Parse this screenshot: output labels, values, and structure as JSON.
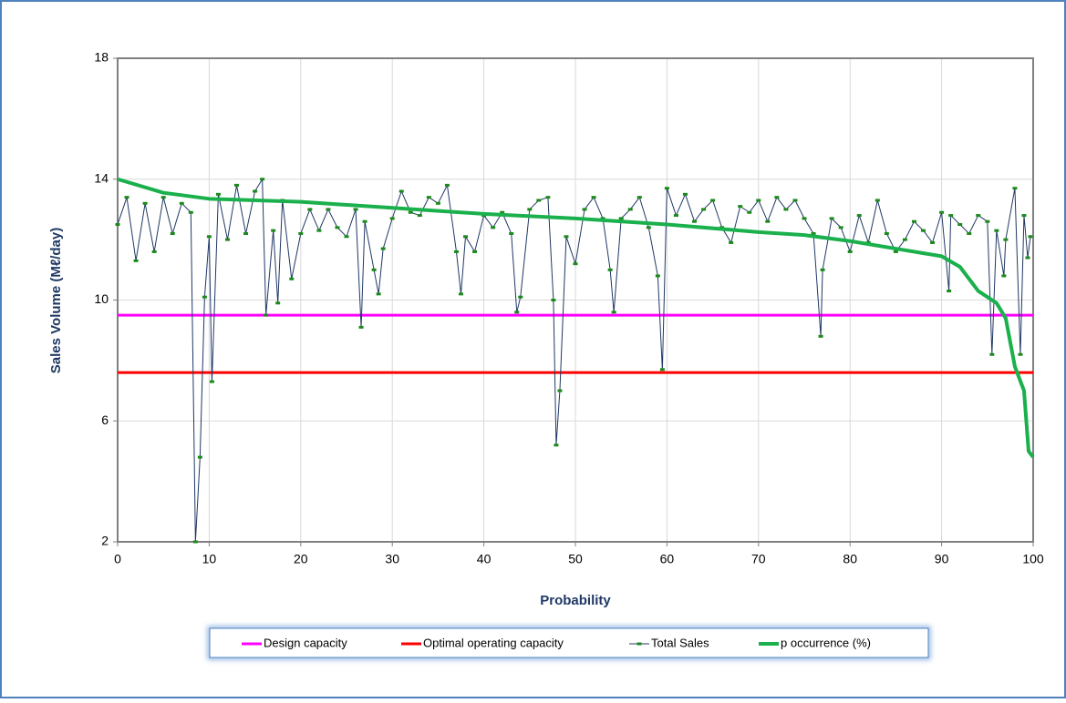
{
  "chart_data": {
    "type": "line",
    "xlabel": "Probability",
    "ylabel": "Sales Volume (Mℓ/day)",
    "xlim": [
      0,
      100
    ],
    "xticks": [
      0,
      10,
      20,
      30,
      40,
      50,
      60,
      70,
      80,
      90,
      100
    ],
    "ylim": [
      2,
      18
    ],
    "yticks": [
      2,
      6,
      10,
      14,
      18
    ],
    "grid": true,
    "legend": "bottom",
    "series": [
      {
        "name": "Design capacity",
        "color": "#ff00ff",
        "x": [
          0,
          100
        ],
        "values": [
          9.5,
          9.5
        ]
      },
      {
        "name": "Optimal operating capacity",
        "color": "#ff0000",
        "x": [
          0,
          100
        ],
        "values": [
          7.6,
          7.6
        ]
      },
      {
        "name": "Total Sales",
        "color": "#1f3864",
        "marker_color": "#1a8a1a",
        "x": [
          0,
          1,
          2,
          3,
          4,
          5,
          6,
          7,
          8,
          8.5,
          9,
          9.5,
          10,
          10.3,
          11,
          12,
          13,
          14,
          15,
          15.8,
          16.2,
          17,
          17.5,
          18,
          19,
          20,
          21,
          22,
          23,
          24,
          25,
          26,
          26.6,
          27,
          28,
          28.5,
          29,
          30,
          31,
          32,
          33,
          34,
          35,
          36,
          37,
          37.5,
          38,
          39,
          40,
          41,
          42,
          43,
          43.6,
          44,
          45,
          46,
          47,
          47.6,
          47.9,
          48.3,
          49,
          50,
          51,
          52,
          53,
          53.8,
          54.2,
          55,
          56,
          57,
          58,
          59,
          59.5,
          60,
          61,
          62,
          63,
          64,
          65,
          66,
          67,
          68,
          69,
          70,
          71,
          72,
          73,
          74,
          75,
          76,
          76.8,
          77,
          78,
          79,
          80,
          81,
          82,
          83,
          84,
          85,
          86,
          87,
          88,
          89,
          90,
          90.8,
          91,
          92,
          93,
          94,
          95,
          95.5,
          96,
          96.8,
          97,
          98,
          98.6,
          99,
          99.4,
          99.7
        ],
        "values": [
          12.5,
          13.4,
          11.3,
          13.2,
          11.6,
          13.4,
          12.2,
          13.2,
          12.9,
          2.0,
          4.8,
          10.1,
          12.1,
          7.3,
          13.5,
          12.0,
          13.8,
          12.2,
          13.6,
          14.0,
          9.5,
          12.3,
          9.9,
          13.3,
          10.7,
          12.2,
          13.0,
          12.3,
          13.0,
          12.4,
          12.1,
          13.0,
          9.1,
          12.6,
          11.0,
          10.2,
          11.7,
          12.7,
          13.6,
          12.9,
          12.8,
          13.4,
          13.2,
          13.8,
          11.6,
          10.2,
          12.1,
          11.6,
          12.8,
          12.4,
          12.9,
          12.2,
          9.6,
          10.1,
          13.0,
          13.3,
          13.4,
          10.0,
          5.2,
          7.0,
          12.1,
          11.2,
          13.0,
          13.4,
          12.7,
          11.0,
          9.6,
          12.7,
          13.0,
          13.4,
          12.4,
          10.8,
          7.7,
          13.7,
          12.8,
          13.5,
          12.6,
          13.0,
          13.3,
          12.4,
          11.9,
          13.1,
          12.9,
          13.3,
          12.6,
          13.4,
          13.0,
          13.3,
          12.7,
          12.2,
          8.8,
          11.0,
          12.7,
          12.4,
          11.6,
          12.8,
          11.9,
          13.3,
          12.2,
          11.6,
          12.0,
          12.6,
          12.3,
          11.9,
          12.9,
          10.3,
          12.8,
          12.5,
          12.2,
          12.8,
          12.6,
          8.2,
          12.3,
          10.8,
          12.0,
          13.7,
          8.2,
          12.8,
          11.4,
          12.1
        ]
      },
      {
        "name": "p occurrence (%)",
        "color": "#1ab04c",
        "x": [
          0,
          5,
          10,
          20,
          30,
          40,
          50,
          60,
          70,
          75,
          80,
          85,
          90,
          92,
          94,
          96,
          97,
          98,
          99,
          99.5,
          100
        ],
        "values": [
          14.0,
          13.55,
          13.35,
          13.25,
          13.05,
          12.85,
          12.7,
          12.5,
          12.25,
          12.15,
          11.95,
          11.7,
          11.45,
          11.1,
          10.3,
          9.9,
          9.4,
          7.8,
          7.0,
          5.0,
          4.8
        ]
      }
    ]
  }
}
